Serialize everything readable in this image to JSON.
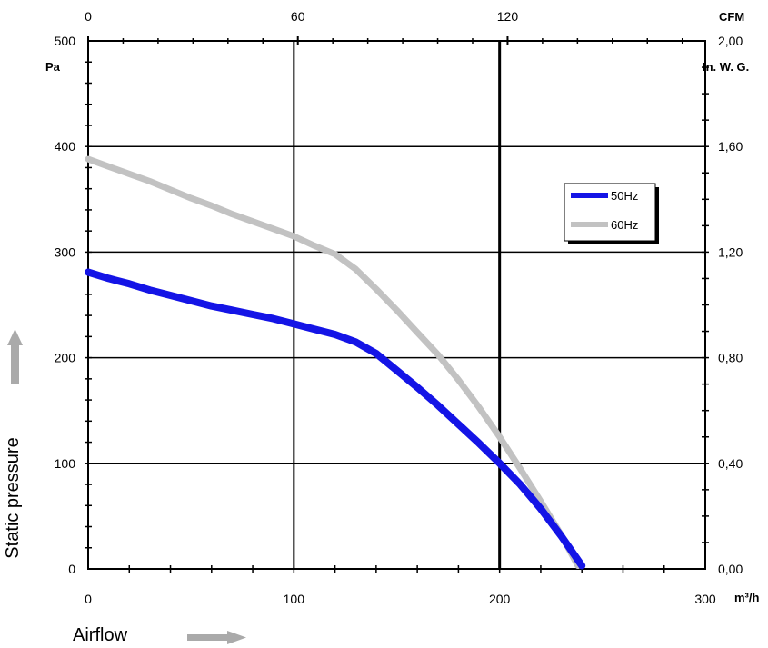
{
  "chart_data": {
    "type": "line",
    "xlabel": "Airflow",
    "ylabel": "Static pressure",
    "x_unit": "m³/h",
    "y_unit": "Pa",
    "xlim": [
      0,
      300
    ],
    "ylim": [
      0,
      500
    ],
    "x_ticks": [
      "0",
      "100",
      "200",
      "300"
    ],
    "y_ticks": [
      "0",
      "100",
      "200",
      "300",
      "400",
      "500"
    ],
    "top_axis": {
      "unit": "CFM",
      "ticks": [
        "0",
        "60",
        "120"
      ],
      "cfm_values": [
        0,
        60,
        120
      ]
    },
    "right_axis": {
      "unit": "In. W. G.",
      "ticks": [
        "0,00",
        "0,40",
        "0,80",
        "1,20",
        "1,60",
        "2,00"
      ]
    },
    "grid": true,
    "legend_position": "top-right",
    "series": [
      {
        "name": "50Hz",
        "color": "#1414e6",
        "x": [
          0,
          10,
          20,
          30,
          40,
          50,
          60,
          70,
          80,
          90,
          100,
          110,
          120,
          130,
          140,
          150,
          160,
          170,
          180,
          190,
          200,
          210,
          220,
          230,
          240
        ],
        "y": [
          281,
          275,
          270,
          264,
          259,
          254,
          249,
          245,
          241,
          237,
          232,
          227,
          222,
          215,
          204,
          188,
          172,
          155,
          137,
          119,
          100,
          80,
          57,
          31,
          3
        ]
      },
      {
        "name": "60Hz",
        "color": "#c2c2c2",
        "x": [
          0,
          10,
          20,
          30,
          40,
          50,
          60,
          70,
          80,
          90,
          100,
          110,
          120,
          130,
          140,
          150,
          160,
          170,
          180,
          190,
          200,
          210,
          220,
          230,
          238
        ],
        "y": [
          388,
          381,
          374,
          367,
          359,
          351,
          344,
          336,
          329,
          322,
          315,
          306,
          298,
          284,
          265,
          245,
          224,
          203,
          179,
          153,
          125,
          95,
          64,
          32,
          3
        ]
      }
    ]
  },
  "ui": {
    "arrow_color": "#aaaaaa"
  }
}
